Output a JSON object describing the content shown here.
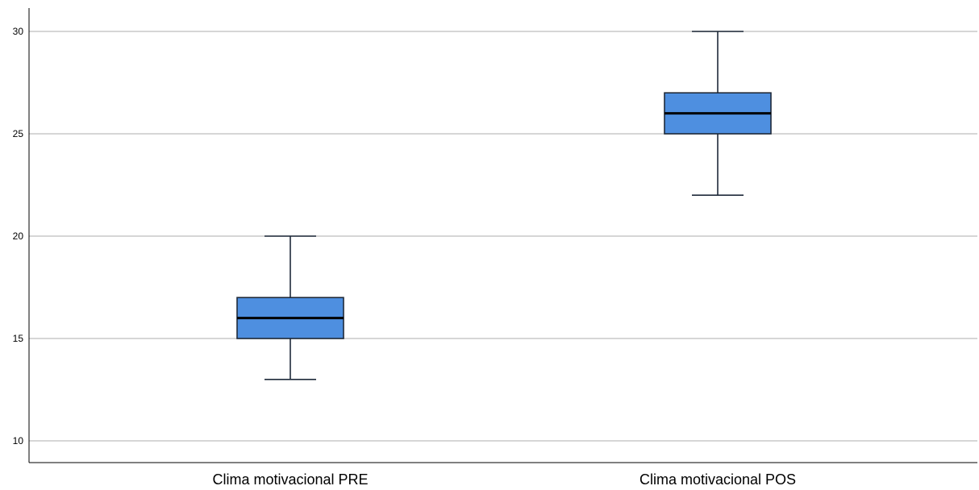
{
  "chart_data": {
    "type": "boxplot",
    "title": "",
    "xlabel": "",
    "ylabel": "",
    "ylim": [
      9,
      31
    ],
    "y_ticks": [
      10,
      15,
      20,
      25,
      30
    ],
    "y_tick_labels": [
      "10",
      "15",
      "20",
      "25",
      "30"
    ],
    "grid": true,
    "categories": [
      "Clima motivacional PRE",
      "Clima motivacional POS"
    ],
    "boxes": [
      {
        "category": "Clima motivacional PRE",
        "min": 13,
        "q1": 15,
        "median": 16,
        "q3": 17,
        "max": 20
      },
      {
        "category": "Clima motivacional POS",
        "min": 22,
        "q1": 25,
        "median": 26,
        "q3": 27,
        "max": 30
      }
    ],
    "colors": {
      "box_fill": "#4e8fe0",
      "box_stroke": "#1f2a3a",
      "grid": "#c8c8c8",
      "axis": "#000000"
    }
  }
}
